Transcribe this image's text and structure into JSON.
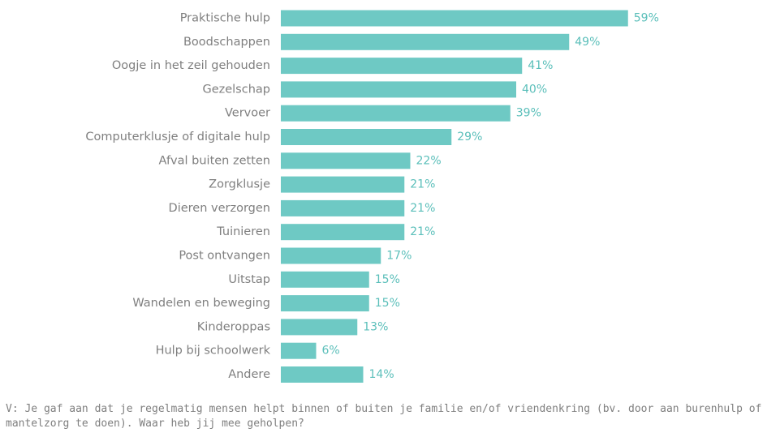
{
  "chart_data": {
    "type": "bar",
    "orientation": "horizontal",
    "categories": [
      "Praktische hulp",
      "Boodschappen",
      "Oogje in het zeil gehouden",
      "Gezelschap",
      "Vervoer",
      "Computerklusje of digitale hulp",
      "Afval buiten zetten",
      "Zorgklusje",
      "Dieren verzorgen",
      "Tuinieren",
      "Post ontvangen",
      "Uitstap",
      "Wandelen en beweging",
      "Kinderoppas",
      "Hulp bij schoolwerk",
      "Andere"
    ],
    "values": [
      59,
      49,
      41,
      40,
      39,
      29,
      22,
      21,
      21,
      21,
      17,
      15,
      15,
      13,
      6,
      14
    ],
    "value_labels": [
      "59%",
      "49%",
      "41%",
      "40%",
      "39%",
      "29%",
      "22%",
      "21%",
      "21%",
      "21%",
      "17%",
      "15%",
      "15%",
      "13%",
      "6%",
      "14%"
    ],
    "unit": "%",
    "xlim": [
      0,
      100
    ],
    "grid": false,
    "legend": "none"
  },
  "colors": {
    "bar": "#6ec9c4",
    "value_label": "#5bbfba",
    "category_label": "#7f7f7f"
  },
  "footnote": "V: Je gaf aan dat je regelmatig mensen helpt binnen of buiten je familie en/of vriendenkring (bv. door aan burenhulp of mantelzorg te doen). Waar heb jij mee geholpen?"
}
